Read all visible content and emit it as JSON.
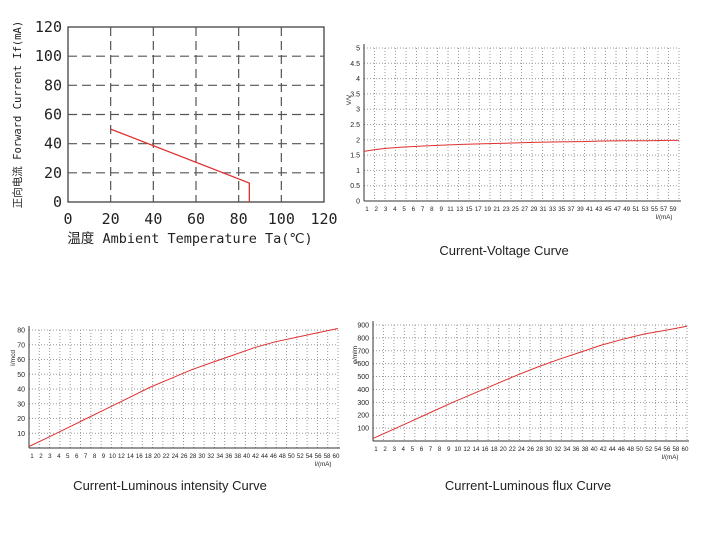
{
  "colors": {
    "curve": "#e03030",
    "grid_dashed": "#555555",
    "grid_dotted": "#9a9a9a",
    "axis": "#333333",
    "text": "#222222"
  },
  "chart_data": [
    {
      "id": "derating",
      "type": "line",
      "title": "",
      "xlabel": "温度 Ambient Temperature Ta(℃)",
      "ylabel": "正向电流 Forward Current If(mA)",
      "xlim": [
        0,
        120
      ],
      "ylim": [
        0,
        120
      ],
      "x_ticks": [
        "0",
        "20",
        "40",
        "60",
        "80",
        "100",
        "120"
      ],
      "y_ticks": [
        "0",
        "20",
        "40",
        "60",
        "80",
        "100",
        "120"
      ],
      "grid": "dashed",
      "series": [
        {
          "x": [
            20,
            85,
            85
          ],
          "y": [
            50,
            13,
            0
          ]
        }
      ]
    },
    {
      "id": "iv",
      "type": "line",
      "title": "Current-Voltage Curve",
      "ylabel": "V/V",
      "xlabel": "I/(mA)",
      "ylim": [
        0,
        5
      ],
      "y_ticks": [
        "0",
        "0.5",
        "1",
        "1.5",
        "2",
        "2.5",
        "3",
        "3.5",
        "4",
        "4.5",
        "5"
      ],
      "x_ticks": [
        "1",
        "2",
        "3",
        "4",
        "5",
        "6",
        "7",
        "8",
        "9",
        "11",
        "13",
        "15",
        "17",
        "19",
        "21",
        "23",
        "25",
        "27",
        "29",
        "31",
        "33",
        "35",
        "37",
        "39",
        "41",
        "43",
        "45",
        "47",
        "49",
        "51",
        "53",
        "55",
        "57",
        "59"
      ],
      "grid": "dotted",
      "series": [
        {
          "x": [
            1,
            3,
            5,
            8,
            11,
            15,
            19,
            23,
            27,
            29,
            33,
            37,
            41,
            45,
            49,
            53,
            57,
            59
          ],
          "y": [
            1.62,
            1.68,
            1.72,
            1.76,
            1.79,
            1.82,
            1.85,
            1.87,
            1.89,
            1.9,
            1.92,
            1.93,
            1.94,
            1.96,
            1.97,
            1.97,
            1.98,
            1.98
          ]
        }
      ]
    },
    {
      "id": "luminous_intensity",
      "type": "line",
      "title": "Current-Luminous intensity Curve",
      "ylabel": "I/mcd",
      "xlabel": "I/(mA)",
      "ylim": [
        0,
        80
      ],
      "y_ticks": [
        "10",
        "20",
        "30",
        "40",
        "50",
        "60",
        "70",
        "80"
      ],
      "x_ticks": [
        "1",
        "2",
        "3",
        "4",
        "5",
        "6",
        "7",
        "8",
        "9",
        "10",
        "12",
        "14",
        "16",
        "18",
        "20",
        "22",
        "24",
        "26",
        "28",
        "30",
        "32",
        "34",
        "36",
        "38",
        "40",
        "42",
        "44",
        "46",
        "48",
        "50",
        "52",
        "54",
        "56",
        "58",
        "60"
      ],
      "grid": "dotted",
      "series": [
        {
          "x": [
            1,
            4,
            8,
            12,
            16,
            20,
            24,
            28,
            32,
            36,
            40,
            44,
            48,
            52,
            56,
            60
          ],
          "y": [
            1,
            6,
            13,
            20,
            27,
            34,
            41,
            47,
            53,
            58,
            63,
            68,
            72,
            75,
            78,
            81
          ]
        }
      ]
    },
    {
      "id": "luminous_flux",
      "type": "line",
      "title": "Current-Luminous flux Curve",
      "ylabel": "φ/mlm",
      "xlabel": "I/(mA)",
      "ylim": [
        0,
        900
      ],
      "y_ticks": [
        "100",
        "200",
        "300",
        "400",
        "500",
        "600",
        "700",
        "800",
        "900"
      ],
      "x_ticks": [
        "1",
        "2",
        "3",
        "4",
        "5",
        "6",
        "7",
        "8",
        "9",
        "10",
        "12",
        "14",
        "16",
        "18",
        "20",
        "22",
        "24",
        "26",
        "28",
        "30",
        "32",
        "34",
        "36",
        "38",
        "40",
        "42",
        "44",
        "46",
        "48",
        "50",
        "52",
        "54",
        "56",
        "58",
        "60"
      ],
      "grid": "dotted",
      "series": [
        {
          "x": [
            1,
            4,
            8,
            12,
            16,
            20,
            24,
            28,
            32,
            36,
            40,
            44,
            48,
            52,
            56,
            60
          ],
          "y": [
            20,
            75,
            150,
            225,
            300,
            370,
            440,
            510,
            575,
            635,
            690,
            745,
            790,
            830,
            860,
            890
          ]
        }
      ]
    }
  ]
}
